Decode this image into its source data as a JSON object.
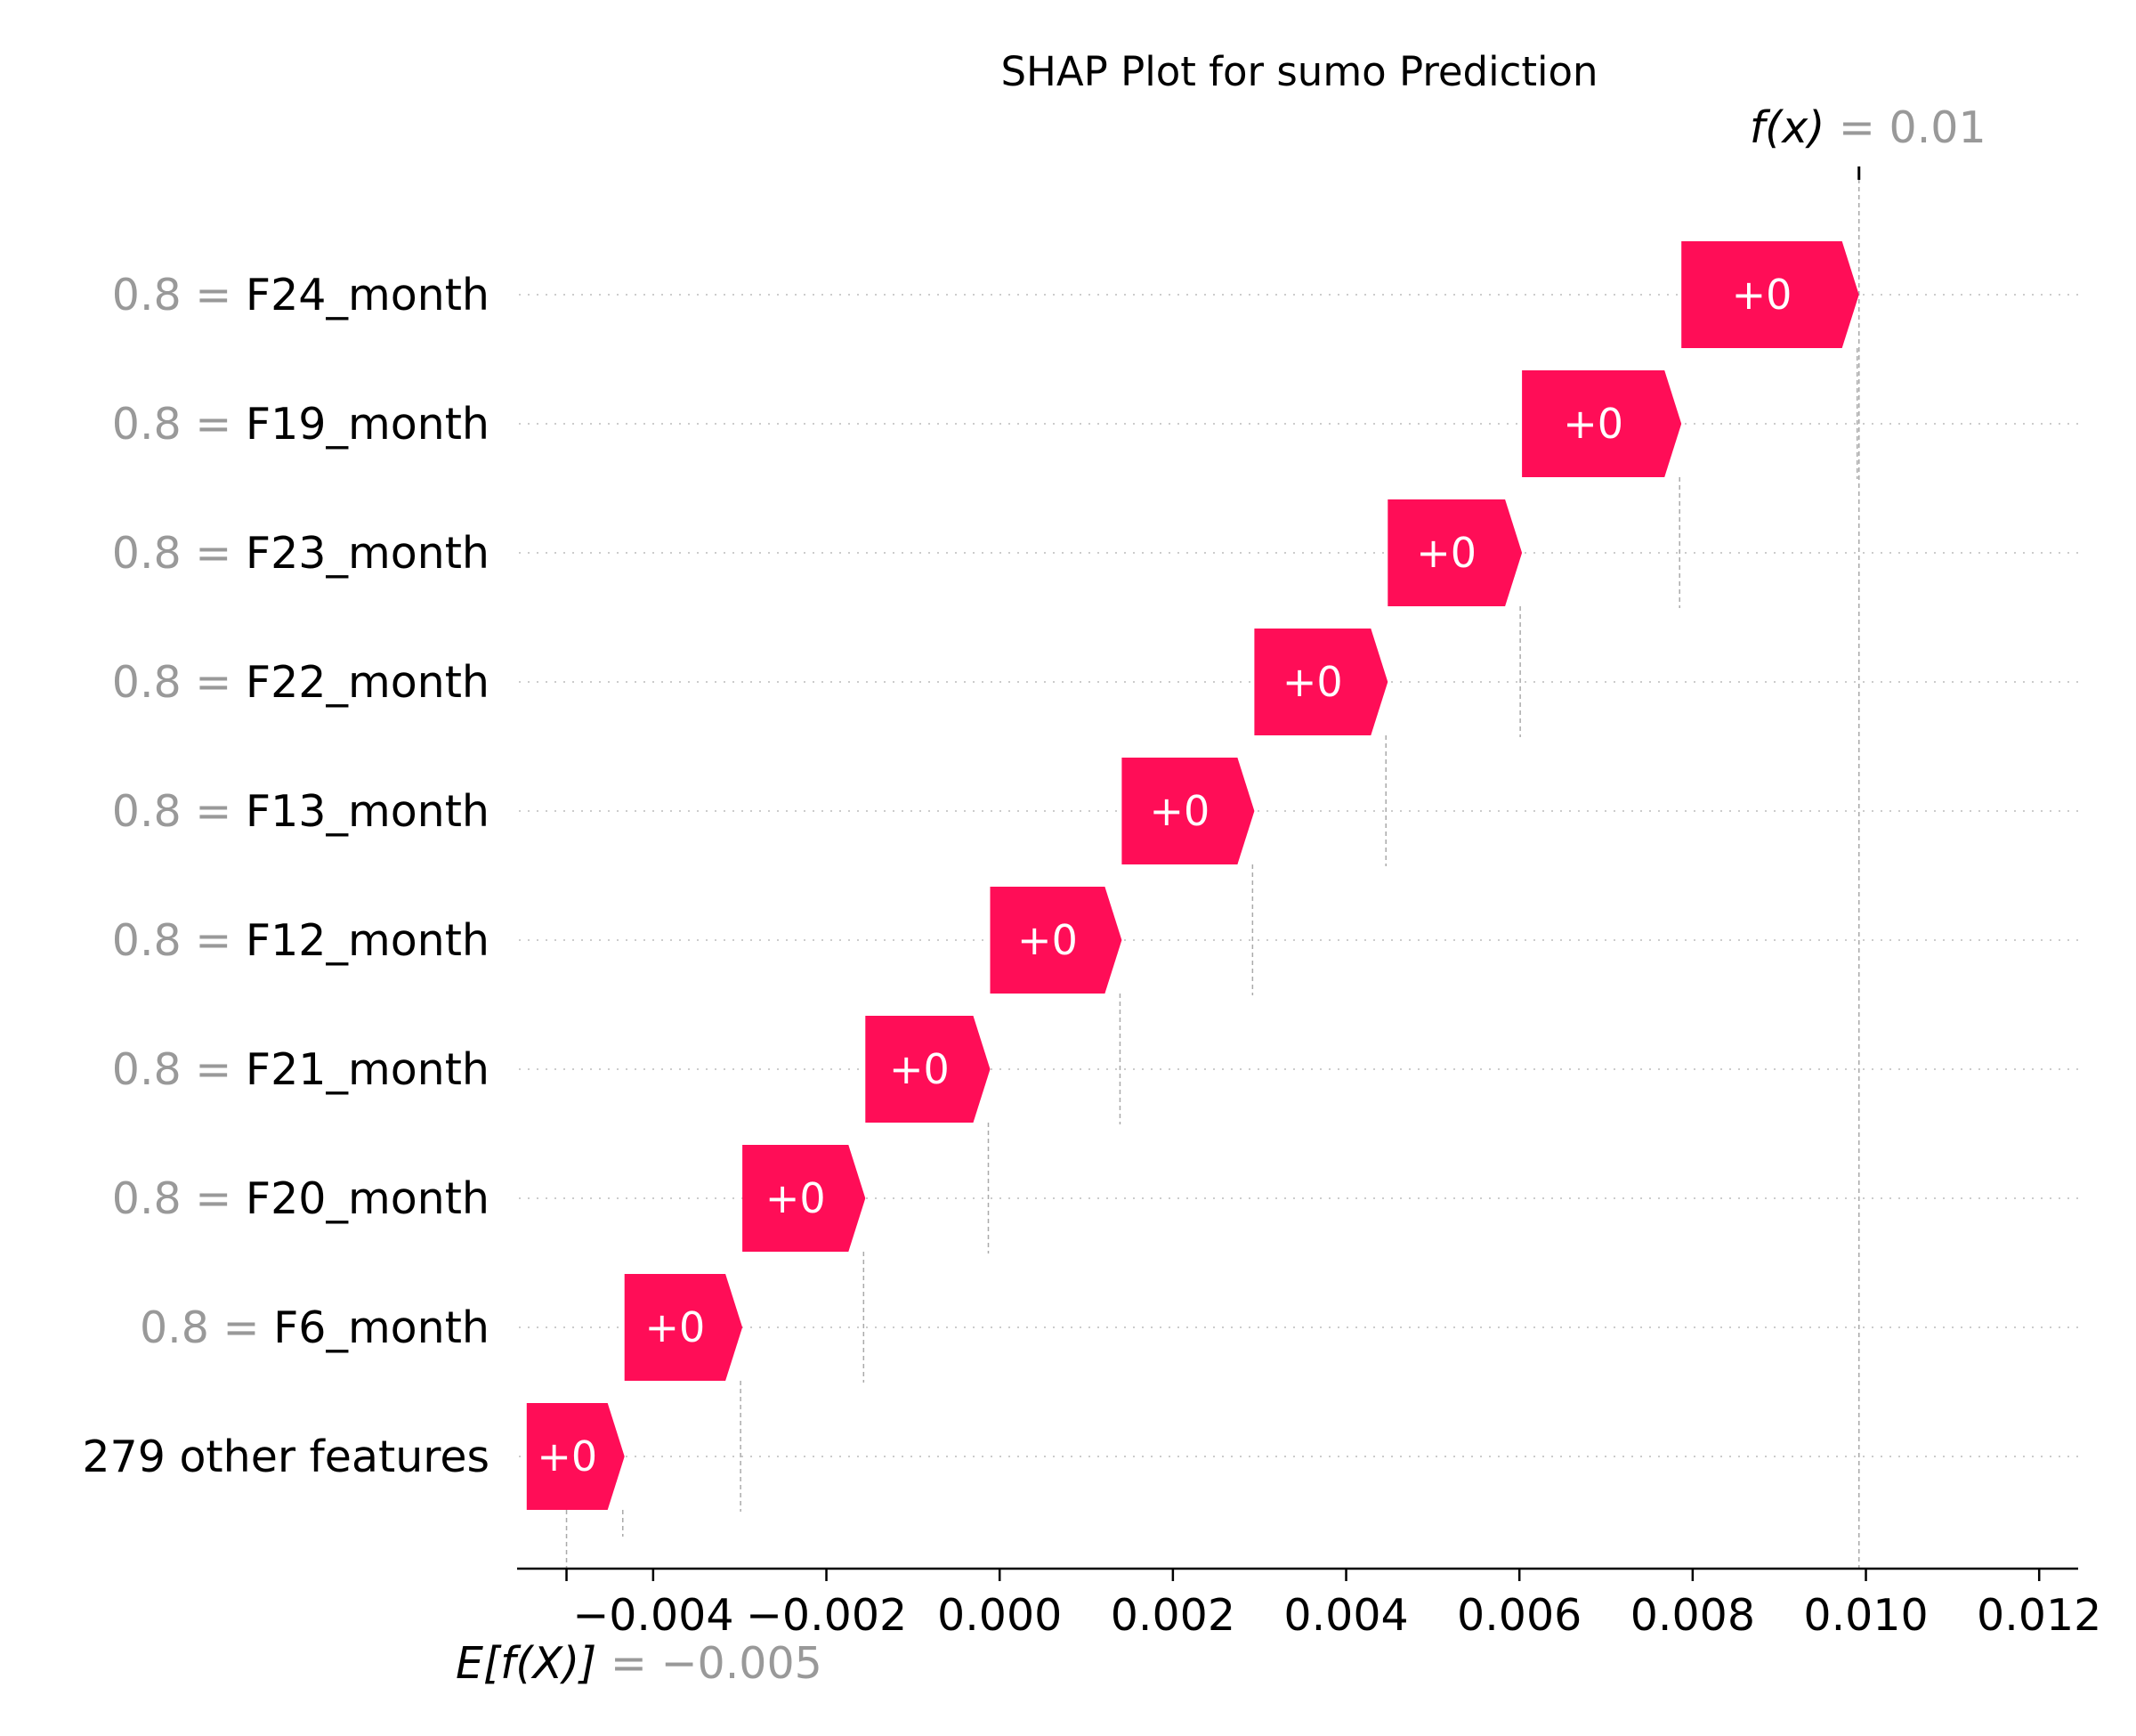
{
  "chart_data": {
    "type": "waterfall",
    "title": "SHAP Plot for sumo Prediction",
    "colors": {
      "positive": "#ff0d57",
      "gray": "#999999",
      "grid": "#cccccc"
    },
    "base_value": {
      "label": "E[f(X)]",
      "display": "= −0.005",
      "value": -0.005
    },
    "output_value": {
      "label": "f(x)",
      "display": "= 0.01",
      "value": 0.00992
    },
    "features": [
      {
        "value_text": "0.8",
        "eq": "=",
        "name": "F24_month",
        "bar_label": "+0",
        "start": 0.00787,
        "end": 0.00992
      },
      {
        "value_text": "0.8",
        "eq": "=",
        "name": "F19_month",
        "bar_label": "+0",
        "start": 0.00603,
        "end": 0.00787
      },
      {
        "value_text": "0.8",
        "eq": "=",
        "name": "F23_month",
        "bar_label": "+0",
        "start": 0.00448,
        "end": 0.00603
      },
      {
        "value_text": "0.8",
        "eq": "=",
        "name": "F22_month",
        "bar_label": "+0",
        "start": 0.00294,
        "end": 0.00448
      },
      {
        "value_text": "0.8",
        "eq": "=",
        "name": "F13_month",
        "bar_label": "+0",
        "start": 0.00141,
        "end": 0.00294
      },
      {
        "value_text": "0.8",
        "eq": "=",
        "name": "F12_month",
        "bar_label": "+0",
        "start": -0.00011,
        "end": 0.00141
      },
      {
        "value_text": "0.8",
        "eq": "=",
        "name": "F21_month",
        "bar_label": "+0",
        "start": -0.00155,
        "end": -0.00011
      },
      {
        "value_text": "0.8",
        "eq": "=",
        "name": "F20_month",
        "bar_label": "+0",
        "start": -0.00297,
        "end": -0.00155
      },
      {
        "value_text": "0.8",
        "eq": "=",
        "name": "F6_month",
        "bar_label": "+0",
        "start": -0.00433,
        "end": -0.00297
      },
      {
        "value_text": "",
        "eq": "",
        "name": "279 other features",
        "bar_label": "+0",
        "start": -0.00546,
        "end": -0.00433
      }
    ],
    "xlim": [
      -0.00555,
      0.01245
    ],
    "x_ticks": [
      -0.005,
      -0.004,
      -0.002,
      0.0,
      0.002,
      0.004,
      0.006,
      0.008,
      0.01,
      0.012
    ],
    "x_tick_labels": [
      "",
      "−0.004",
      "−0.002",
      "0.000",
      "0.002",
      "0.004",
      "0.006",
      "0.008",
      "0.010",
      "0.012"
    ]
  }
}
